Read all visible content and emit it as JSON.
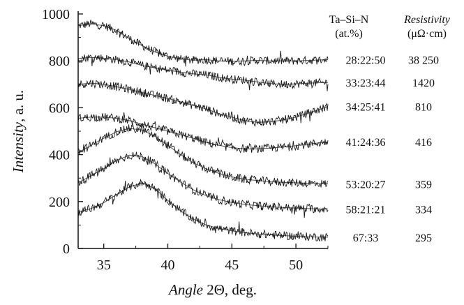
{
  "chart_data": {
    "type": "line",
    "title": "",
    "xlabel": {
      "italic": "Angle",
      "rest": " 2Θ, deg."
    },
    "ylabel": {
      "italic": "Intensity",
      "rest": ", a. u."
    },
    "xlim": [
      33,
      52.5
    ],
    "ylim": [
      0,
      1000
    ],
    "x_ticks": [
      35,
      40,
      45,
      50
    ],
    "y_ticks": [
      0,
      200,
      400,
      600,
      800,
      1000
    ],
    "grid": false,
    "legend": {
      "placement": "right",
      "col1_header": [
        "Ta–Si–N",
        "(at.%)"
      ],
      "col2_header": [
        "Resistivity",
        "(μΩ·cm)"
      ]
    },
    "series": [
      {
        "composition": "28:22:50",
        "resistivity": "38 250",
        "x": [
          33,
          34,
          35,
          36,
          37,
          38,
          39,
          40,
          41,
          42,
          43,
          44,
          45,
          46,
          47,
          48,
          49,
          50,
          51,
          52.5
        ],
        "y": [
          950,
          958,
          950,
          930,
          895,
          865,
          838,
          820,
          808,
          803,
          805,
          800,
          798,
          800,
          802,
          800,
          800,
          800,
          802,
          805
        ]
      },
      {
        "composition": "33:23:44",
        "resistivity": "1420",
        "x": [
          33,
          34,
          35,
          36,
          37,
          38,
          39,
          40,
          41,
          42,
          43,
          44,
          45,
          46,
          47,
          48,
          49,
          50,
          51,
          52.5
        ],
        "y": [
          810,
          815,
          812,
          805,
          795,
          780,
          770,
          760,
          752,
          745,
          740,
          730,
          722,
          718,
          710,
          703,
          700,
          702,
          705,
          708
        ]
      },
      {
        "composition": "34:25:41",
        "resistivity": "810",
        "x": [
          33,
          34,
          35,
          36,
          37,
          38,
          39,
          40,
          41,
          42,
          43,
          44,
          45,
          46,
          47,
          48,
          49,
          50,
          51,
          52.5
        ],
        "y": [
          700,
          705,
          700,
          690,
          678,
          665,
          652,
          640,
          625,
          610,
          595,
          575,
          560,
          545,
          538,
          540,
          548,
          560,
          578,
          605
        ]
      },
      {
        "composition": "41:24:36",
        "resistivity": "416",
        "x": [
          33,
          34,
          35,
          36,
          37,
          38,
          39,
          40,
          41,
          42,
          43,
          44,
          45,
          46,
          47,
          48,
          49,
          50,
          51,
          52.5
        ],
        "y": [
          555,
          560,
          560,
          555,
          545,
          530,
          515,
          500,
          485,
          470,
          452,
          440,
          430,
          425,
          425,
          428,
          432,
          438,
          445,
          455
        ]
      },
      {
        "composition": "53:20:27",
        "resistivity": "359",
        "x": [
          33,
          34,
          35,
          36,
          37,
          38,
          39,
          40,
          41,
          42,
          43,
          44,
          45,
          46,
          47,
          48,
          49,
          50,
          51,
          52.5
        ],
        "y": [
          408,
          440,
          470,
          498,
          512,
          505,
          478,
          440,
          400,
          365,
          340,
          320,
          305,
          295,
          290,
          285,
          282,
          280,
          278,
          276
        ]
      },
      {
        "composition": "58:21:21",
        "resistivity": "334",
        "x": [
          33,
          34,
          35,
          36,
          37,
          38,
          39,
          40,
          41,
          42,
          43,
          44,
          45,
          46,
          47,
          48,
          49,
          50,
          51,
          52.5
        ],
        "y": [
          280,
          310,
          340,
          375,
          398,
          392,
          360,
          320,
          283,
          250,
          225,
          208,
          196,
          188,
          182,
          178,
          175,
          172,
          170,
          168
        ]
      },
      {
        "composition": "67:33",
        "resistivity": "295",
        "x": [
          33,
          34,
          35,
          36,
          37,
          38,
          39,
          40,
          41,
          42,
          43,
          44,
          45,
          46,
          47,
          48,
          49,
          50,
          51,
          52.5
        ],
        "y": [
          155,
          170,
          195,
          230,
          262,
          280,
          255,
          205,
          160,
          125,
          100,
          85,
          75,
          68,
          62,
          58,
          55,
          52,
          50,
          48
        ]
      }
    ]
  }
}
